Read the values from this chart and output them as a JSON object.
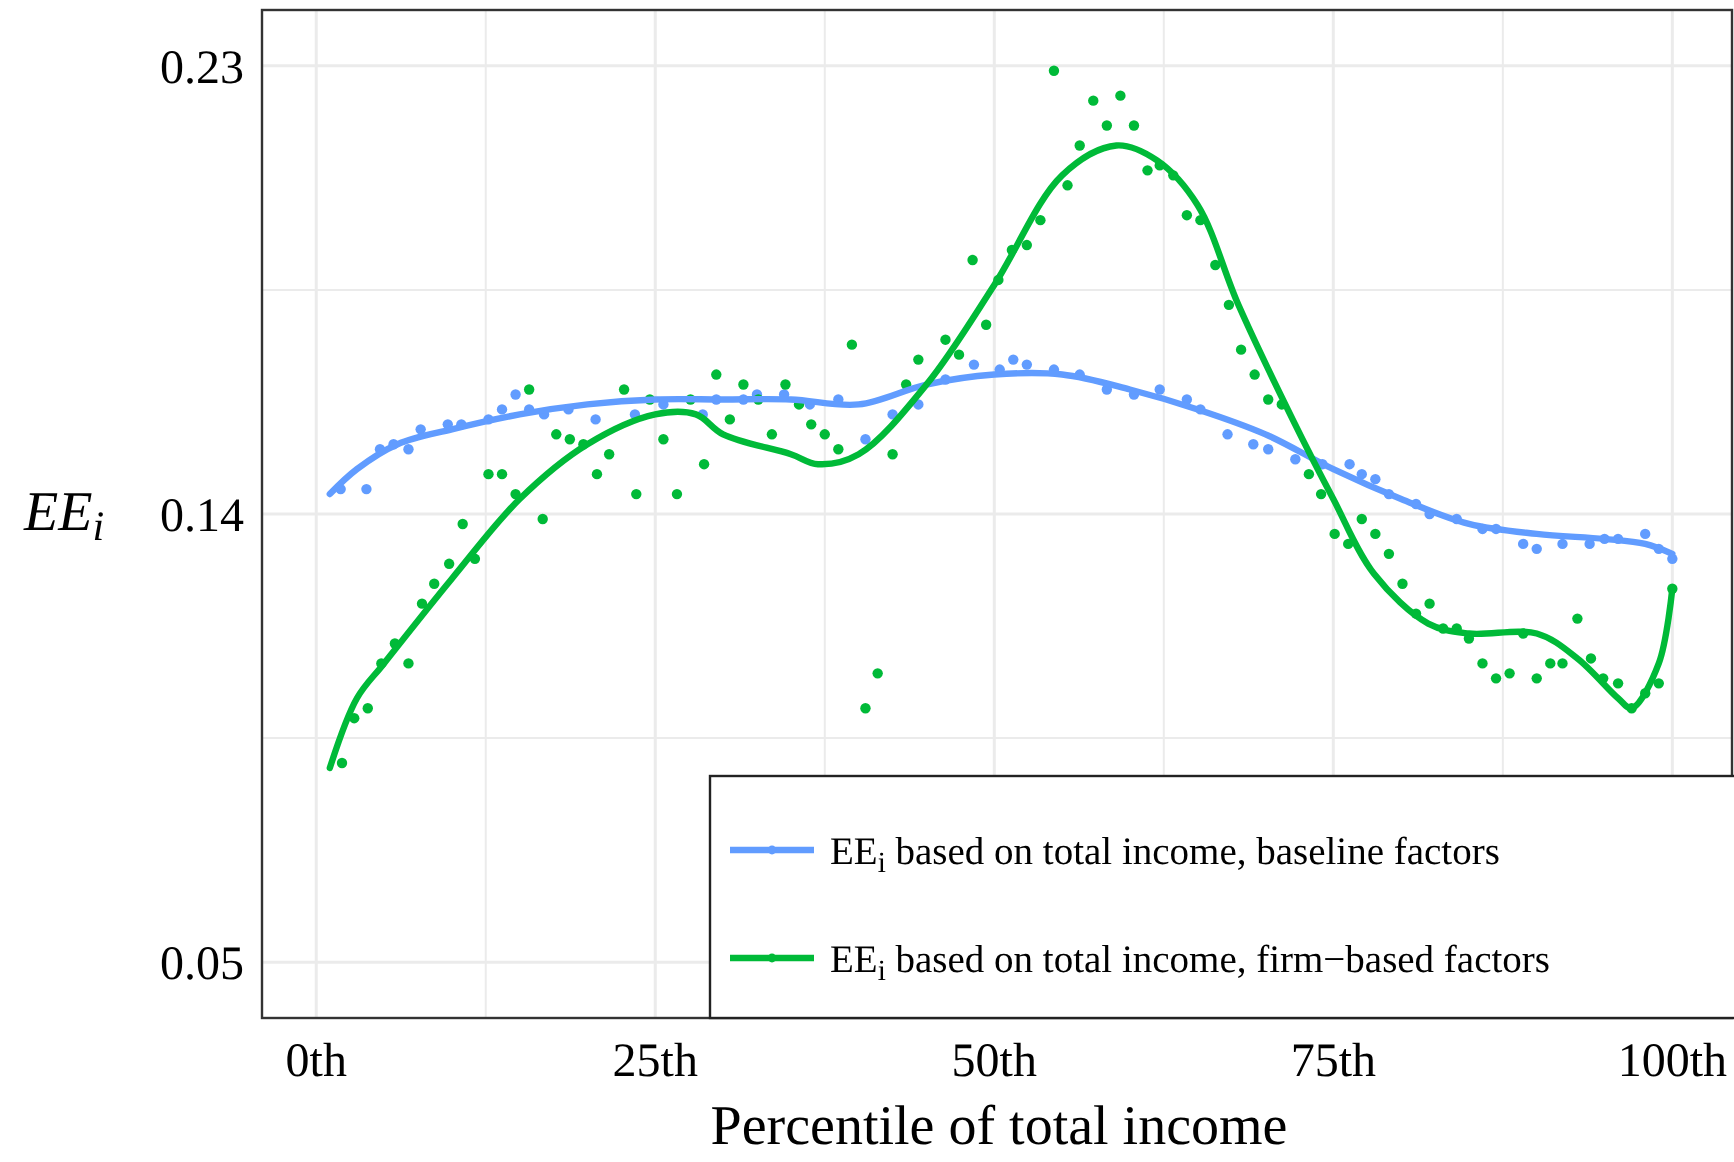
{
  "chart_data": {
    "type": "scatter",
    "xlabel": "Percentile of total income",
    "ylabel": "EE$_{i}$",
    "xlim": [
      -4,
      104.4
    ],
    "ylim": [
      0.0388,
      0.2412
    ],
    "xticks": [
      {
        "value": 0,
        "label": "0th"
      },
      {
        "value": 12.5,
        "label": null
      },
      {
        "value": 25,
        "label": "25th"
      },
      {
        "value": 37.5,
        "label": null
      },
      {
        "value": 50,
        "label": "50th"
      },
      {
        "value": 62.5,
        "label": null
      },
      {
        "value": 75,
        "label": "75th"
      },
      {
        "value": 87.5,
        "label": null
      },
      {
        "value": 100,
        "label": "100th"
      }
    ],
    "yticks": [
      {
        "value": 0.05,
        "label": "0.05"
      },
      {
        "value": 0.095,
        "label": null
      },
      {
        "value": 0.14,
        "label": "0.14"
      },
      {
        "value": 0.185,
        "label": null
      },
      {
        "value": 0.23,
        "label": "0.23"
      }
    ],
    "grid": true,
    "legend": "bottom right",
    "series": [
      {
        "color": "#619cff",
        "x": [
          1.8,
          3.7,
          4.7,
          5.7,
          6.8,
          7.7,
          9.7,
          10.7,
          12.7,
          13.7,
          14.7,
          15.7,
          16.8,
          18.6,
          20.6,
          23.5,
          25.6,
          28.5,
          29.5,
          31.5,
          32.5,
          34.5,
          36.4,
          38.5,
          40.5,
          42.5,
          44.4,
          46.4,
          48.5,
          50.4,
          51.4,
          52.4,
          54.4,
          56.3,
          58.3,
          60.3,
          62.2,
          64.2,
          65.2,
          67.2,
          69.1,
          70.2,
          72.2,
          74.2,
          76.2,
          77.1,
          78.1,
          79.1,
          81.1,
          82.1,
          84.1,
          86,
          87,
          89,
          90,
          91.9,
          93.9,
          95,
          96,
          98,
          99,
          100
        ],
        "values": [
          0.145,
          0.145,
          0.153,
          0.154,
          0.153,
          0.157,
          0.158,
          0.158,
          0.159,
          0.161,
          0.164,
          0.161,
          0.16,
          0.161,
          0.159,
          0.16,
          0.162,
          0.16,
          0.163,
          0.163,
          0.164,
          0.164,
          0.162,
          0.163,
          0.155,
          0.16,
          0.162,
          0.167,
          0.17,
          0.169,
          0.171,
          0.17,
          0.169,
          0.168,
          0.165,
          0.164,
          0.165,
          0.163,
          0.161,
          0.156,
          0.154,
          0.153,
          0.151,
          0.15,
          0.15,
          0.148,
          0.147,
          0.144,
          0.142,
          0.14,
          0.139,
          0.137,
          0.137,
          0.134,
          0.133,
          0.134,
          0.134,
          0.135,
          0.135,
          0.136,
          0.133,
          0.131
        ]
      },
      {
        "color": "#00ba38",
        "x": [
          1.9,
          2.8,
          3.8,
          4.8,
          5.8,
          6.8,
          7.8,
          8.7,
          9.8,
          10.8,
          11.7,
          12.7,
          13.7,
          14.7,
          15.7,
          16.7,
          17.7,
          18.7,
          19.7,
          20.7,
          21.6,
          22.7,
          23.6,
          24.6,
          25.6,
          26.6,
          27.6,
          28.6,
          29.5,
          30.5,
          31.5,
          32.6,
          33.6,
          34.6,
          35.6,
          36.5,
          37.5,
          38.5,
          39.5,
          40.5,
          41.4,
          42.5,
          43.5,
          44.4,
          46.4,
          47.4,
          48.4,
          49.4,
          50.3,
          51.3,
          52.4,
          53.4,
          54.4,
          55.4,
          56.3,
          57.3,
          58.3,
          59.3,
          60.3,
          61.3,
          62.2,
          63.2,
          64.2,
          65.2,
          66.3,
          67.3,
          68.2,
          69.2,
          70.2,
          71.2,
          73.2,
          74.1,
          75.1,
          76.1,
          77.1,
          78.1,
          79.1,
          80.1,
          81.1,
          82.1,
          83.1,
          84.1,
          85,
          86,
          87,
          88,
          89,
          90,
          91,
          91.9,
          93,
          94,
          94.9,
          96,
          97,
          98,
          99,
          100
        ],
        "values": [
          0.09,
          0.099,
          0.101,
          0.11,
          0.114,
          0.11,
          0.122,
          0.126,
          0.13,
          0.138,
          0.131,
          0.148,
          0.148,
          0.144,
          0.165,
          0.139,
          0.156,
          0.155,
          0.154,
          0.148,
          0.152,
          0.165,
          0.144,
          0.163,
          0.155,
          0.144,
          0.163,
          0.15,
          0.168,
          0.159,
          0.166,
          0.163,
          0.156,
          0.166,
          0.162,
          0.158,
          0.156,
          0.153,
          0.174,
          0.101,
          0.108,
          0.152,
          0.166,
          0.171,
          0.175,
          0.172,
          0.191,
          0.178,
          0.187,
          0.193,
          0.194,
          0.199,
          0.229,
          0.206,
          0.214,
          0.223,
          0.218,
          0.224,
          0.218,
          0.209,
          0.21,
          0.208,
          0.2,
          0.199,
          0.19,
          0.182,
          0.173,
          0.168,
          0.163,
          0.162,
          0.148,
          0.144,
          0.136,
          0.134,
          0.139,
          0.136,
          0.132,
          0.126,
          0.12,
          0.122,
          0.117,
          0.117,
          0.115,
          0.11,
          0.107,
          0.108,
          0.116,
          0.107,
          0.11,
          0.11,
          0.119,
          0.111,
          0.107,
          0.106,
          0.101,
          0.104,
          0.106,
          0.125
        ]
      },
      {
        "type": "line",
        "name": "EE$_{i}$ based on total income, baseline factors",
        "color": "#619cff",
        "x": [
          1,
          3,
          6,
          10,
          15,
          20,
          25,
          30,
          35,
          40,
          45,
          50,
          55,
          60,
          65,
          70,
          75,
          80,
          85,
          90,
          95,
          98,
          100
        ],
        "values": [
          0.144,
          0.149,
          0.154,
          0.157,
          0.16,
          0.162,
          0.163,
          0.163,
          0.163,
          0.162,
          0.166,
          0.168,
          0.168,
          0.165,
          0.161,
          0.156,
          0.149,
          0.143,
          0.138,
          0.136,
          0.135,
          0.134,
          0.132
        ]
      },
      {
        "type": "line",
        "name": "EE$_{i}$ based on total income, firm−based factors",
        "color": "#00ba38",
        "x": [
          1,
          3,
          5,
          10,
          15,
          20,
          25,
          28,
          30,
          35,
          37,
          40,
          45,
          50,
          55,
          59,
          62,
          65,
          68,
          72,
          75,
          78,
          82,
          85,
          90,
          93,
          96,
          97,
          99,
          100
        ],
        "values": [
          0.089,
          0.103,
          0.11,
          0.127,
          0.143,
          0.154,
          0.16,
          0.16,
          0.156,
          0.152,
          0.15,
          0.152,
          0.166,
          0.186,
          0.208,
          0.214,
          0.211,
          0.202,
          0.182,
          0.159,
          0.143,
          0.128,
          0.118,
          0.116,
          0.116,
          0.111,
          0.103,
          0.101,
          0.11,
          0.125
        ]
      }
    ]
  }
}
